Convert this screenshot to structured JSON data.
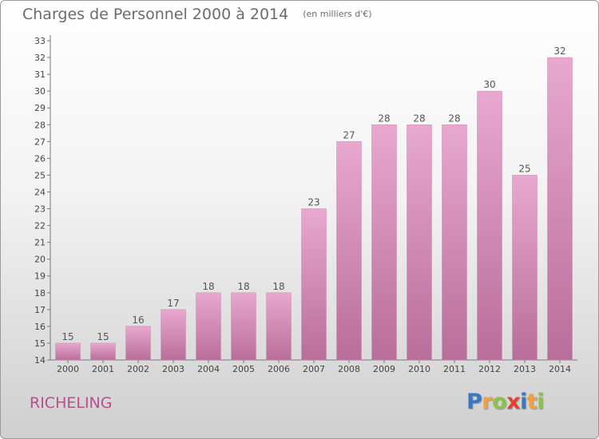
{
  "title": "Charges de Personnel 2000 à 2014",
  "subtitle": "(en milliers d'€)",
  "commune": "RICHELING",
  "logo": {
    "text": "Proxiti",
    "parts": [
      "P",
      "r",
      "o",
      "x",
      "i",
      "t",
      "i"
    ]
  },
  "colors": {
    "bar_top": "#e8a8cf",
    "bar_bottom": "#b86e9a",
    "title": "#6b6b6b",
    "commune": "#b84f8f"
  },
  "chart_data": {
    "type": "bar",
    "categories": [
      "2000",
      "2001",
      "2002",
      "2003",
      "2004",
      "2005",
      "2006",
      "2007",
      "2008",
      "2009",
      "2010",
      "2011",
      "2012",
      "2013",
      "2014"
    ],
    "values": [
      15,
      15,
      16,
      17,
      18,
      18,
      18,
      23,
      27,
      28,
      28,
      28,
      30,
      25,
      32
    ],
    "ylim": [
      14,
      33
    ],
    "yticks": [
      14,
      15,
      16,
      17,
      18,
      19,
      20,
      21,
      22,
      23,
      24,
      25,
      26,
      27,
      28,
      29,
      30,
      31,
      32,
      33
    ],
    "grid": false,
    "data_labels": true
  }
}
